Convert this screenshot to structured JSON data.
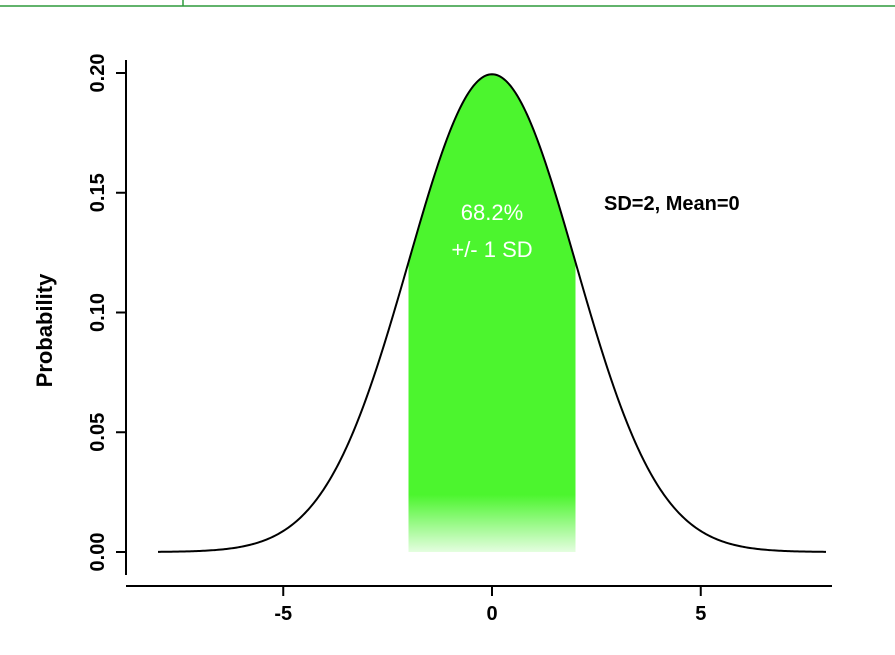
{
  "colors": {
    "fill": "#4cf52e",
    "frame": "#2e9a3c",
    "curve": "#000000",
    "inner_text": "#ffffff"
  },
  "chart_data": {
    "type": "area",
    "distribution": "normal",
    "mean": 0,
    "sd": 2,
    "xlim": [
      -8,
      8
    ],
    "ylim": [
      0,
      0.2
    ],
    "x_ticks": [
      -5,
      0,
      5
    ],
    "x_tick_labels": [
      "-5",
      "0",
      "5"
    ],
    "y_ticks": [
      0.0,
      0.05,
      0.1,
      0.15,
      0.2
    ],
    "y_tick_labels": [
      "0.00",
      "0.05",
      "0.10",
      "0.15",
      "0.20"
    ],
    "ylabel": "Probability",
    "xlabel": "",
    "shaded_range": [
      -2,
      2
    ],
    "shaded_percent_text": "68.2%",
    "shaded_range_text": "+/- 1 SD",
    "annotation": "SD=2, Mean=0",
    "grid": false
  }
}
